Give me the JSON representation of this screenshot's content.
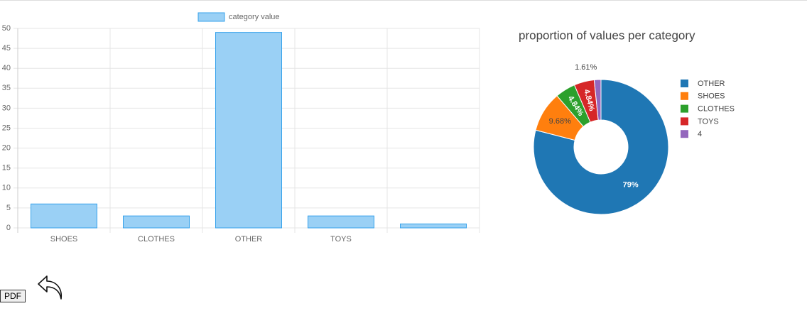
{
  "chart_data": [
    {
      "type": "bar",
      "categories": [
        "SHOES",
        "CLOTHES",
        "OTHER",
        "TOYS",
        null
      ],
      "series": [
        {
          "name": "category value",
          "color": "#9ad0f5",
          "border": "#36a2eb",
          "values": [
            6,
            3,
            49,
            3,
            1
          ]
        }
      ],
      "ylim": [
        0,
        50
      ],
      "yticks": [
        0,
        5,
        10,
        15,
        20,
        25,
        30,
        35,
        40,
        45,
        50
      ],
      "grid": true
    },
    {
      "type": "pie",
      "title": "proportion of values per category",
      "categories": [
        "OTHER",
        "SHOES",
        "CLOTHES",
        "TOYS",
        "4"
      ],
      "values": [
        79,
        9.68,
        4.84,
        4.84,
        1.61
      ],
      "value_labels": [
        "79%",
        "9.68%",
        "4.84%",
        "4.84%",
        "1.61%"
      ],
      "colors": [
        "#1f77b4",
        "#ff7f0e",
        "#2ca02c",
        "#d62728",
        "#9467bd"
      ],
      "hole": true
    }
  ],
  "ui": {
    "pdf_button": "PDF"
  }
}
